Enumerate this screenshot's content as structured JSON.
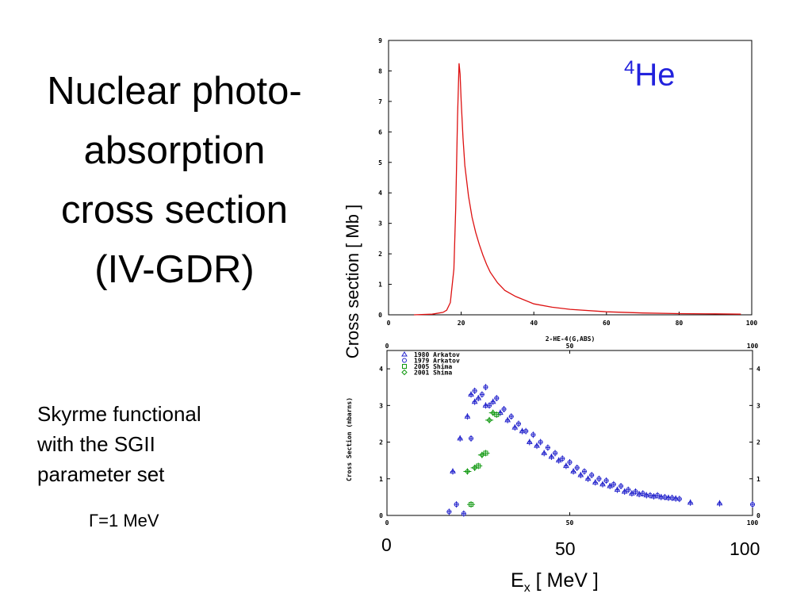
{
  "title_lines": [
    "Nuclear photo-",
    "absorption",
    "cross section",
    "(IV-GDR)"
  ],
  "description_lines": [
    "Skyrme functional",
    "with the SGII",
    "parameter set"
  ],
  "gamma_label": "Γ=1 MeV",
  "isotope": {
    "mass": "4",
    "symbol": "He"
  },
  "y_axis_label": "Cross section [ Mb ]",
  "x_axis_label": {
    "main": "E",
    "sub": "x",
    "unit": " [ MeV ]"
  },
  "x_ticks_big": [
    "0",
    "50",
    "100"
  ],
  "colors": {
    "theory_curve": "#dd1111",
    "isotope_label": "#2222dd",
    "arkatov": "#2222cc",
    "shima": "#119911"
  },
  "chart_data": [
    {
      "type": "line",
      "xlabel": "2-HE-4(G,ABS)",
      "xlim": [
        0,
        100
      ],
      "ylim": [
        0,
        9
      ],
      "x_ticks": [
        "0",
        "20",
        "40",
        "60",
        "80",
        "100"
      ],
      "y_ticks": [
        "0",
        "1",
        "2",
        "3",
        "4",
        "5",
        "6",
        "7",
        "8",
        "9"
      ],
      "series": [
        {
          "x": [
            7,
            12,
            15,
            16,
            17,
            18,
            18.5,
            19,
            19.4,
            19.7,
            20,
            20.5,
            21,
            22,
            23,
            24,
            25,
            26,
            27,
            28,
            30,
            32,
            35,
            40,
            45,
            50,
            60,
            70,
            80,
            90,
            97
          ],
          "y": [
            0.0,
            0.02,
            0.08,
            0.15,
            0.4,
            1.5,
            3.5,
            6.5,
            8.25,
            7.9,
            7.0,
            5.8,
            4.9,
            3.9,
            3.2,
            2.7,
            2.3,
            1.95,
            1.65,
            1.4,
            1.05,
            0.8,
            0.6,
            0.36,
            0.25,
            0.18,
            0.1,
            0.06,
            0.04,
            0.03,
            0.02
          ]
        }
      ]
    },
    {
      "type": "scatter",
      "ylabel": "Cross Section (mbarns)",
      "xlim": [
        0,
        100
      ],
      "ylim": [
        0,
        4.5
      ],
      "x_ticks": [
        "0",
        "50",
        "100"
      ],
      "y_ticks": [
        "0",
        "1",
        "2",
        "3",
        "4"
      ],
      "legend_position": "top-left",
      "series": [
        {
          "name": "1980 Arkatov",
          "marker": "triangle",
          "x": [
            18,
            20,
            22,
            23,
            24,
            25,
            27,
            29,
            31,
            33,
            35,
            37,
            39,
            41,
            43,
            45,
            47,
            49,
            51,
            53,
            55,
            57,
            59,
            61,
            63,
            65,
            67,
            69,
            71,
            73,
            75,
            77,
            79,
            83,
            91
          ],
          "y": [
            1.2,
            2.1,
            2.7,
            3.3,
            3.1,
            3.2,
            3.0,
            3.1,
            2.8,
            2.6,
            2.4,
            2.3,
            2.0,
            1.9,
            1.7,
            1.6,
            1.5,
            1.35,
            1.2,
            1.1,
            1.0,
            0.9,
            0.85,
            0.8,
            0.7,
            0.65,
            0.6,
            0.58,
            0.55,
            0.52,
            0.5,
            0.48,
            0.46,
            0.35,
            0.33
          ]
        },
        {
          "name": "1979 Arkatov",
          "marker": "circle",
          "x": [
            17,
            19,
            21,
            23,
            24,
            26,
            27,
            28,
            30,
            32,
            34,
            36,
            38,
            40,
            42,
            44,
            46,
            48,
            50,
            52,
            54,
            56,
            58,
            60,
            62,
            64,
            66,
            68,
            70,
            72,
            74,
            76,
            78,
            80,
            100
          ],
          "y": [
            0.1,
            0.3,
            0.05,
            2.1,
            3.4,
            3.3,
            3.5,
            3.0,
            3.2,
            2.9,
            2.7,
            2.5,
            2.3,
            2.2,
            2.0,
            1.85,
            1.7,
            1.55,
            1.45,
            1.3,
            1.2,
            1.1,
            1.0,
            0.95,
            0.85,
            0.8,
            0.7,
            0.65,
            0.6,
            0.55,
            0.55,
            0.5,
            0.48,
            0.45,
            0.3
          ]
        },
        {
          "name": "2005 Shima",
          "marker": "square",
          "x": [
            23,
            25,
            27,
            30
          ],
          "y": [
            0.3,
            1.35,
            1.7,
            2.75
          ]
        },
        {
          "name": "2001 Shima",
          "marker": "diamond",
          "x": [
            22,
            24,
            26,
            28,
            29
          ],
          "y": [
            1.2,
            1.3,
            1.65,
            2.6,
            2.8
          ]
        }
      ]
    }
  ]
}
